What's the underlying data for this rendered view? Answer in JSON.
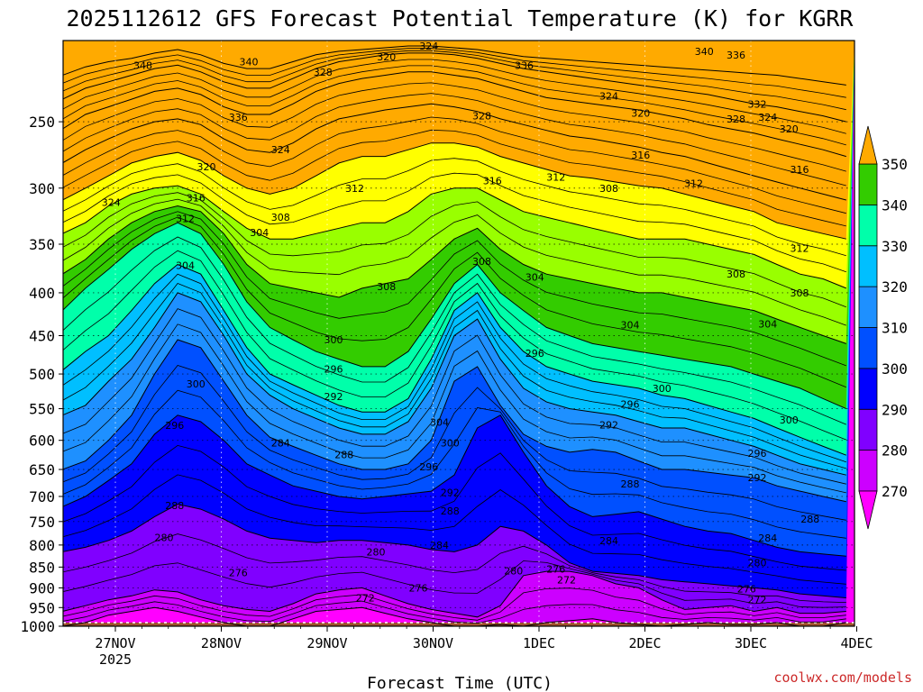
{
  "colors": {
    "bands": [
      "#ff00ff",
      "#cc00ff",
      "#8000ff",
      "#0000ff",
      "#0050ff",
      "#1e90ff",
      "#00bfff",
      "#00ffaa",
      "#33cc00",
      "#99ff00",
      "#ffff00",
      "#ffaa00"
    ],
    "ground": "#a0522d",
    "watermark": "#cc2a2a"
  },
  "chart_data": {
    "type": "heatmap",
    "title": "2025112612 GFS Forecast Potential Temperature (K) for KGRR",
    "xlabel": "Forecast Time (UTC)",
    "ylabel": "",
    "y_scale": "log-pressure",
    "y_axis_reversed": true,
    "y_ticks": [
      250,
      300,
      350,
      400,
      450,
      500,
      550,
      600,
      650,
      700,
      750,
      800,
      850,
      900,
      950,
      1000
    ],
    "x_ticks": [
      {
        "label": "27NOV",
        "sub": "2025"
      },
      {
        "label": "28NOV",
        "sub": ""
      },
      {
        "label": "29NOV",
        "sub": ""
      },
      {
        "label": "30NOV",
        "sub": ""
      },
      {
        "label": "1DEC",
        "sub": ""
      },
      {
        "label": "2DEC",
        "sub": ""
      },
      {
        "label": "3DEC",
        "sub": ""
      },
      {
        "label": "4DEC",
        "sub": ""
      }
    ],
    "colorbar": {
      "unit": "K",
      "labels": [
        270,
        280,
        290,
        300,
        310,
        320,
        330,
        340,
        350
      ]
    },
    "grid": true,
    "contour_interval_K": 4,
    "band_interval_K": 5,
    "isentrope_levels": [
      {
        "theta": 270,
        "p": [
          1000,
          990,
          970,
          960,
          950,
          960,
          975,
          990,
          1000,
          1000,
          980,
          960,
          955,
          950,
          965,
          980,
          990,
          1000,
          1000,
          995,
          1000,
          990,
          985,
          980,
          990,
          995,
          1000,
          995,
          990,
          995,
          995,
          990,
          1000,
          1000,
          990
        ]
      },
      {
        "theta": 275,
        "p": [
          960,
          945,
          930,
          920,
          905,
          910,
          930,
          945,
          955,
          960,
          940,
          915,
          905,
          900,
          920,
          940,
          955,
          965,
          975,
          945,
          870,
          860,
          860,
          870,
          890,
          900,
          930,
          955,
          950,
          945,
          960,
          950,
          965,
          965,
          960
        ]
      },
      {
        "theta": 280,
        "p": [
          815,
          805,
          790,
          770,
          740,
          715,
          725,
          745,
          770,
          785,
          790,
          795,
          790,
          790,
          795,
          800,
          810,
          815,
          800,
          760,
          770,
          800,
          840,
          860,
          865,
          870,
          880,
          885,
          890,
          895,
          900,
          905,
          915,
          920,
          925
        ]
      },
      {
        "theta": 285,
        "p": [
          720,
          700,
          670,
          640,
          590,
          560,
          570,
          600,
          640,
          660,
          680,
          690,
          700,
          705,
          700,
          695,
          690,
          660,
          580,
          560,
          620,
          680,
          720,
          740,
          735,
          730,
          745,
          760,
          770,
          775,
          790,
          805,
          815,
          820,
          825
        ]
      },
      {
        "theta": 290,
        "p": [
          650,
          635,
          600,
          560,
          500,
          455,
          465,
          510,
          560,
          595,
          610,
          625,
          640,
          650,
          650,
          640,
          600,
          510,
          490,
          545,
          590,
          610,
          620,
          615,
          620,
          635,
          650,
          650,
          655,
          660,
          665,
          680,
          690,
          700,
          710
        ]
      },
      {
        "theta": 295,
        "p": [
          560,
          545,
          510,
          480,
          440,
          400,
          410,
          450,
          500,
          530,
          550,
          565,
          580,
          590,
          590,
          570,
          520,
          450,
          430,
          480,
          520,
          540,
          550,
          555,
          560,
          570,
          580,
          580,
          590,
          600,
          610,
          625,
          640,
          650,
          660
        ]
      },
      {
        "theta": 300,
        "p": [
          495,
          470,
          450,
          420,
          390,
          370,
          380,
          420,
          465,
          500,
          515,
          530,
          545,
          555,
          555,
          535,
          480,
          420,
          400,
          440,
          470,
          490,
          500,
          510,
          515,
          520,
          530,
          535,
          545,
          555,
          565,
          580,
          595,
          610,
          625
        ]
      },
      {
        "theta": 305,
        "p": [
          420,
          395,
          375,
          355,
          340,
          330,
          340,
          370,
          410,
          440,
          455,
          470,
          480,
          490,
          490,
          470,
          430,
          390,
          370,
          400,
          420,
          440,
          450,
          460,
          465,
          470,
          475,
          480,
          485,
          490,
          500,
          510,
          520,
          535,
          550
        ]
      },
      {
        "theta": 310,
        "p": [
          380,
          365,
          345,
          330,
          320,
          315,
          320,
          340,
          370,
          390,
          395,
          400,
          405,
          395,
          390,
          385,
          365,
          345,
          335,
          355,
          370,
          380,
          385,
          390,
          395,
          400,
          400,
          405,
          410,
          415,
          420,
          430,
          440,
          450,
          460
        ]
      },
      {
        "theta": 315,
        "p": [
          340,
          330,
          315,
          305,
          300,
          298,
          305,
          320,
          335,
          345,
          345,
          340,
          335,
          330,
          330,
          320,
          305,
          300,
          300,
          310,
          320,
          325,
          330,
          335,
          340,
          345,
          345,
          345,
          350,
          355,
          360,
          370,
          380,
          385,
          395
        ]
      },
      {
        "theta": 320,
        "p": [
          310,
          300,
          290,
          280,
          275,
          272,
          278,
          290,
          300,
          305,
          300,
          290,
          280,
          275,
          275,
          270,
          265,
          265,
          268,
          275,
          280,
          285,
          290,
          292,
          295,
          298,
          300,
          305,
          310,
          315,
          320,
          330,
          335,
          340,
          345
        ]
      },
      {
        "theta": 325,
        "p": [
          280,
          270,
          262,
          255,
          250,
          248,
          252,
          262,
          270,
          272,
          265,
          255,
          248,
          245,
          242,
          240,
          238,
          240,
          243,
          248,
          252,
          256,
          260,
          262,
          265,
          268,
          272,
          275,
          280,
          285,
          290,
          295,
          300,
          305,
          310
        ]
      },
      {
        "theta": 330,
        "p": [
          255,
          245,
          240,
          235,
          230,
          228,
          232,
          240,
          245,
          245,
          238,
          230,
          225,
          222,
          220,
          218,
          218,
          220,
          222,
          226,
          230,
          234,
          236,
          238,
          240,
          242,
          245,
          248,
          252,
          255,
          258,
          262,
          266,
          270,
          275
        ]
      },
      {
        "theta": 335,
        "p": [
          235,
          228,
          224,
          220,
          216,
          214,
          218,
          224,
          228,
          228,
          222,
          216,
          212,
          210,
          208,
          207,
          207,
          208,
          210,
          213,
          216,
          218,
          220,
          222,
          224,
          226,
          228,
          230,
          232,
          235,
          238,
          240,
          243,
          246,
          250
        ]
      },
      {
        "theta": 340,
        "p": [
          220,
          215,
          212,
          210,
          207,
          205,
          208,
          213,
          216,
          216,
          212,
          208,
          206,
          205,
          204,
          203,
          203,
          204,
          205,
          207,
          209,
          210,
          211,
          212,
          213,
          214,
          215,
          216,
          217,
          218,
          219,
          220,
          222,
          224,
          226
        ]
      }
    ],
    "contour_labels": [
      {
        "text": "348",
        "t": 0.26,
        "p": 214
      },
      {
        "text": "340",
        "t": 1.26,
        "p": 212
      },
      {
        "text": "336",
        "t": 1.16,
        "p": 247
      },
      {
        "text": "328",
        "t": 1.96,
        "p": 218
      },
      {
        "text": "324",
        "t": 1.56,
        "p": 270
      },
      {
        "text": "320",
        "t": 2.56,
        "p": 209
      },
      {
        "text": "324",
        "t": 2.96,
        "p": 203
      },
      {
        "text": "336",
        "t": 3.86,
        "p": 214
      },
      {
        "text": "328",
        "t": 3.46,
        "p": 246
      },
      {
        "text": "324",
        "t": 4.66,
        "p": 233
      },
      {
        "text": "320",
        "t": 4.96,
        "p": 244
      },
      {
        "text": "340",
        "t": 5.56,
        "p": 206
      },
      {
        "text": "336",
        "t": 5.86,
        "p": 208
      },
      {
        "text": "332",
        "t": 6.06,
        "p": 238
      },
      {
        "text": "328",
        "t": 5.86,
        "p": 248
      },
      {
        "text": "324",
        "t": 6.16,
        "p": 247
      },
      {
        "text": "320",
        "t": 6.36,
        "p": 255
      },
      {
        "text": "320",
        "t": 0.86,
        "p": 283
      },
      {
        "text": "324",
        "t": -0.04,
        "p": 312
      },
      {
        "text": "316",
        "t": 0.76,
        "p": 308
      },
      {
        "text": "312",
        "t": 0.66,
        "p": 326
      },
      {
        "text": "312",
        "t": 2.26,
        "p": 300
      },
      {
        "text": "316",
        "t": 3.56,
        "p": 294
      },
      {
        "text": "312",
        "t": 4.16,
        "p": 291
      },
      {
        "text": "308",
        "t": 4.66,
        "p": 300
      },
      {
        "text": "316",
        "t": 4.96,
        "p": 274
      },
      {
        "text": "312",
        "t": 5.46,
        "p": 296
      },
      {
        "text": "316",
        "t": 6.46,
        "p": 285
      },
      {
        "text": "308",
        "t": 1.56,
        "p": 325
      },
      {
        "text": "304",
        "t": 1.36,
        "p": 339
      },
      {
        "text": "304",
        "t": 0.66,
        "p": 371
      },
      {
        "text": "308",
        "t": 3.46,
        "p": 367
      },
      {
        "text": "308",
        "t": 2.56,
        "p": 393
      },
      {
        "text": "304",
        "t": 3.96,
        "p": 383
      },
      {
        "text": "312",
        "t": 6.46,
        "p": 354
      },
      {
        "text": "308",
        "t": 5.86,
        "p": 380
      },
      {
        "text": "308",
        "t": 6.46,
        "p": 400
      },
      {
        "text": "304",
        "t": 4.86,
        "p": 437
      },
      {
        "text": "304",
        "t": 6.16,
        "p": 436
      },
      {
        "text": "300",
        "t": 2.06,
        "p": 455
      },
      {
        "text": "296",
        "t": 2.06,
        "p": 493
      },
      {
        "text": "292",
        "t": 2.06,
        "p": 532
      },
      {
        "text": "296",
        "t": 3.96,
        "p": 472
      },
      {
        "text": "300",
        "t": 0.76,
        "p": 514
      },
      {
        "text": "296",
        "t": 0.56,
        "p": 576
      },
      {
        "text": "300",
        "t": 5.16,
        "p": 520
      },
      {
        "text": "296",
        "t": 4.86,
        "p": 543
      },
      {
        "text": "292",
        "t": 4.66,
        "p": 575
      },
      {
        "text": "300",
        "t": 6.36,
        "p": 567
      },
      {
        "text": "296",
        "t": 6.06,
        "p": 622
      },
      {
        "text": "292",
        "t": 6.06,
        "p": 665
      },
      {
        "text": "304",
        "t": 3.06,
        "p": 571
      },
      {
        "text": "300",
        "t": 3.16,
        "p": 604
      },
      {
        "text": "296",
        "t": 2.96,
        "p": 645
      },
      {
        "text": "292",
        "t": 3.16,
        "p": 692
      },
      {
        "text": "288",
        "t": 3.16,
        "p": 728
      },
      {
        "text": "284",
        "t": 1.56,
        "p": 604
      },
      {
        "text": "288",
        "t": 2.16,
        "p": 624
      },
      {
        "text": "288",
        "t": 0.56,
        "p": 718
      },
      {
        "text": "288",
        "t": 4.86,
        "p": 676
      },
      {
        "text": "288",
        "t": 6.56,
        "p": 745
      },
      {
        "text": "284",
        "t": 6.16,
        "p": 785
      },
      {
        "text": "284",
        "t": 3.06,
        "p": 800
      },
      {
        "text": "284",
        "t": 4.66,
        "p": 790
      },
      {
        "text": "280",
        "t": 0.46,
        "p": 784
      },
      {
        "text": "280",
        "t": 2.46,
        "p": 815
      },
      {
        "text": "280",
        "t": 3.76,
        "p": 859
      },
      {
        "text": "280",
        "t": 6.06,
        "p": 840
      },
      {
        "text": "276",
        "t": 1.16,
        "p": 863
      },
      {
        "text": "276",
        "t": 2.86,
        "p": 900
      },
      {
        "text": "276",
        "t": 4.16,
        "p": 855
      },
      {
        "text": "276",
        "t": 5.96,
        "p": 902
      },
      {
        "text": "272",
        "t": 2.36,
        "p": 925
      },
      {
        "text": "272",
        "t": 4.26,
        "p": 880
      },
      {
        "text": "272",
        "t": 6.06,
        "p": 930
      }
    ]
  },
  "watermark": "coolwx.com/models"
}
